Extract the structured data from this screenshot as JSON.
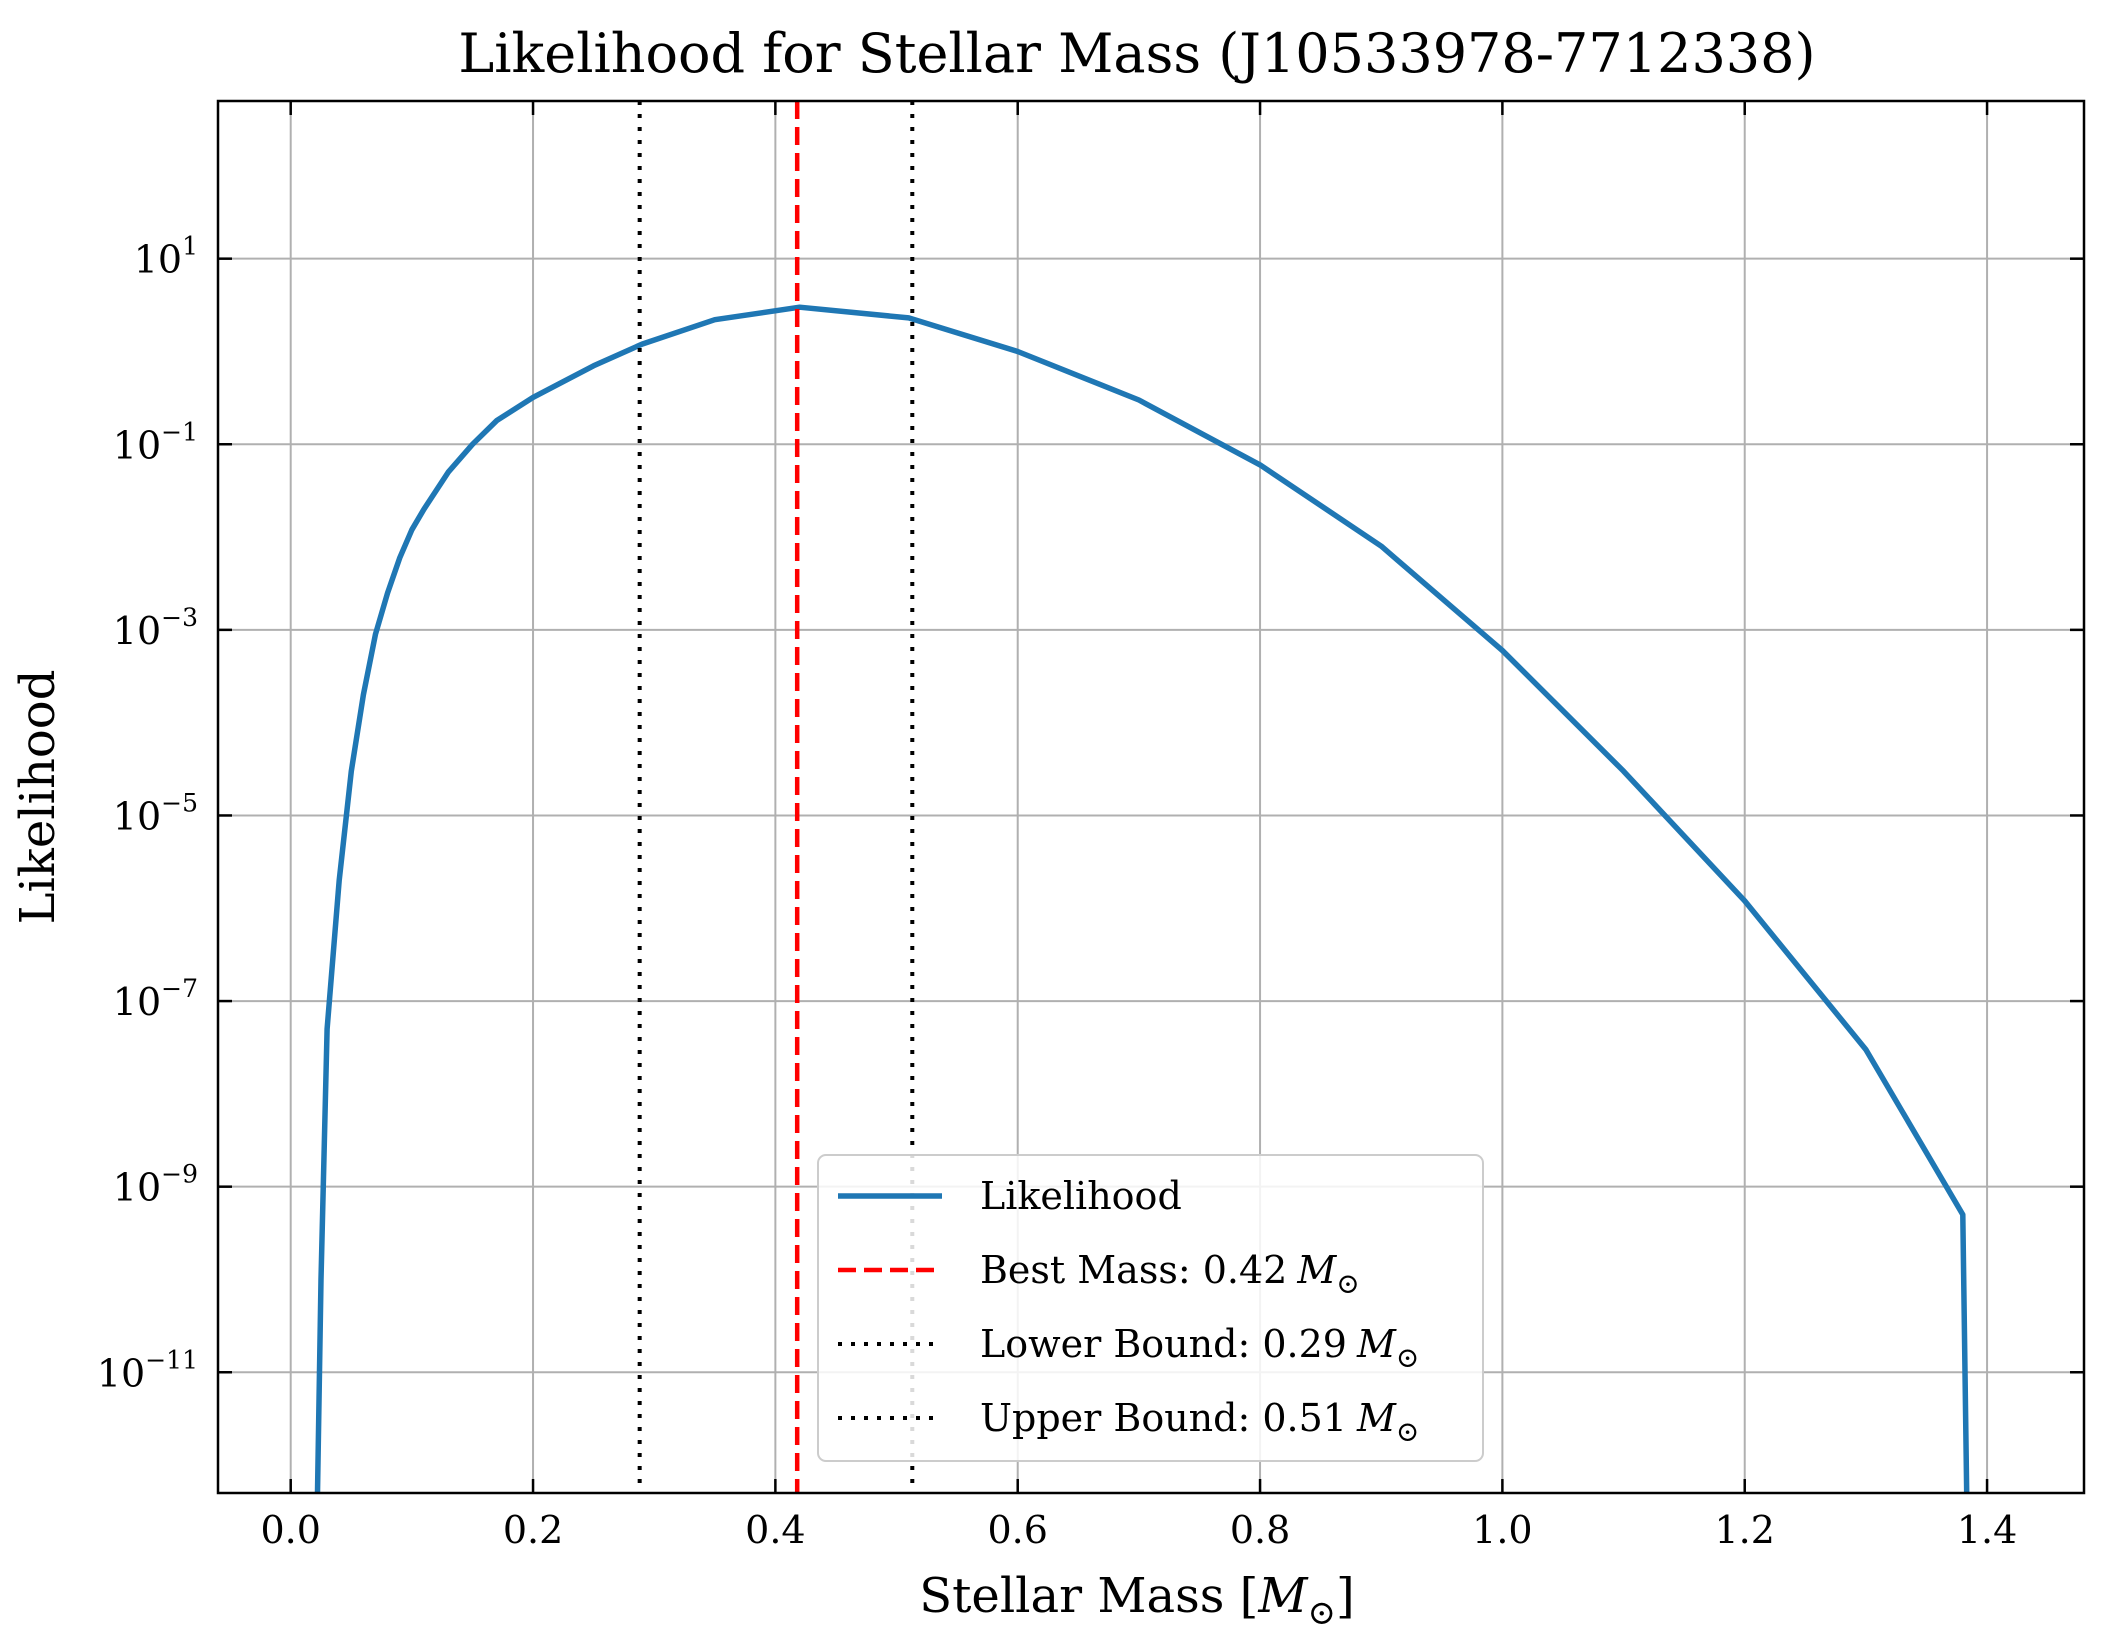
{
  "chart_data": {
    "type": "line",
    "title": "Likelihood for Stellar Mass (J10533978-7712338)",
    "xlabel": "Stellar Mass [",
    "xlabel_unit_symbol": "M",
    "xlabel_unit_sub": "⊙",
    "xlabel_close": "]",
    "ylabel": "Likelihood",
    "x_scale": "linear",
    "y_scale": "log",
    "xlim": [
      -0.06,
      1.48
    ],
    "ylim": [
      5e-13,
      500
    ],
    "x_ticks": [
      {
        "value": 0.0,
        "label": "0.0"
      },
      {
        "value": 0.2,
        "label": "0.2"
      },
      {
        "value": 0.4,
        "label": "0.4"
      },
      {
        "value": 0.6,
        "label": "0.6"
      },
      {
        "value": 0.8,
        "label": "0.8"
      },
      {
        "value": 1.0,
        "label": "1.0"
      },
      {
        "value": 1.2,
        "label": "1.2"
      },
      {
        "value": 1.4,
        "label": "1.4"
      }
    ],
    "y_ticks": [
      {
        "value": 10,
        "base": "10",
        "exp": "1"
      },
      {
        "value": 0.1,
        "base": "10",
        "exp": "−1"
      },
      {
        "value": 0.001,
        "base": "10",
        "exp": "−3"
      },
      {
        "value": 1e-05,
        "base": "10",
        "exp": "−5"
      },
      {
        "value": 1e-07,
        "base": "10",
        "exp": "−7"
      },
      {
        "value": 1e-09,
        "base": "10",
        "exp": "−9"
      },
      {
        "value": 1e-11,
        "base": "10",
        "exp": "−11"
      }
    ],
    "grid": true,
    "legend_position": "lower-center",
    "colors": {
      "likelihood": "#1f77b4",
      "best": "#ff0000",
      "bounds": "#000000",
      "grid": "#b0b0b0"
    },
    "series": [
      {
        "name": "Likelihood",
        "x": [
          0.02,
          0.025,
          0.03,
          0.04,
          0.05,
          0.06,
          0.07,
          0.08,
          0.09,
          0.1,
          0.11,
          0.13,
          0.15,
          0.17,
          0.2,
          0.25,
          0.29,
          0.35,
          0.42,
          0.51,
          0.6,
          0.7,
          0.8,
          0.9,
          1.0,
          1.1,
          1.2,
          1.3,
          1.38,
          1.385
        ],
        "y": [
          1e-14,
          1e-10,
          5e-08,
          2e-06,
          3e-05,
          0.0002,
          0.0009,
          0.0025,
          0.006,
          0.012,
          0.02,
          0.05,
          0.1,
          0.18,
          0.32,
          0.7,
          1.2,
          2.2,
          3,
          2.3,
          1,
          0.3,
          0.06,
          0.008,
          0.0006,
          3e-05,
          1.2e-06,
          3e-08,
          5e-10,
          1e-14
        ]
      }
    ],
    "vlines": [
      {
        "name": "Best Mass: 0.42",
        "symbol": "M",
        "sub": "⊙",
        "x": 0.418,
        "style": "dashed"
      },
      {
        "name": "Lower Bound: 0.29",
        "symbol": "M",
        "sub": "⊙",
        "x": 0.288,
        "style": "dotted"
      },
      {
        "name": "Upper Bound: 0.51",
        "symbol": "M",
        "sub": "⊙",
        "x": 0.513,
        "style": "dotted"
      }
    ]
  }
}
